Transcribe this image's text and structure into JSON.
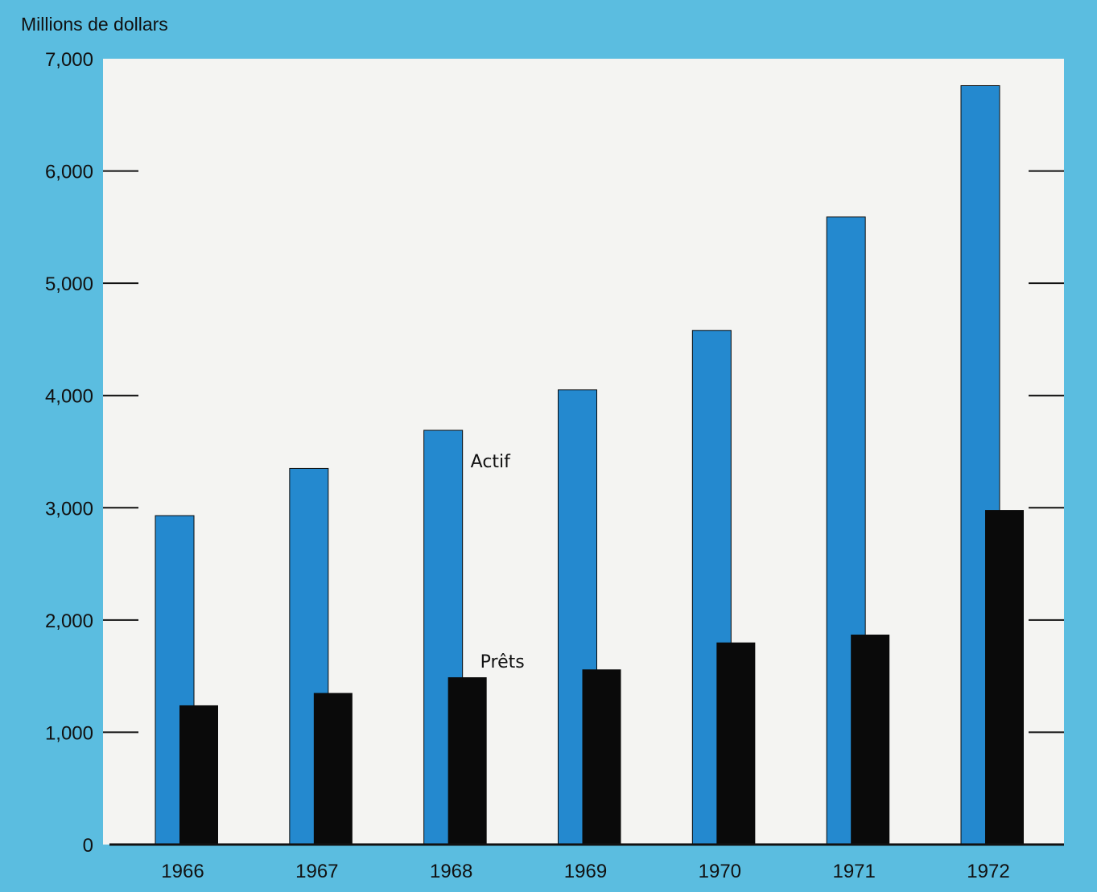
{
  "colors": {
    "background": "#5bbde0",
    "plot_area": "#f4f4f2",
    "actif": "#2489cf",
    "prets": "#0a0a0a",
    "axis": "#111111"
  },
  "chart_data": {
    "type": "bar",
    "title": "",
    "xlabel": "",
    "ylabel": "Millions de dollars",
    "categories": [
      "1966",
      "1967",
      "1968",
      "1969",
      "1970",
      "1971",
      "1972"
    ],
    "ylim": [
      0,
      7000
    ],
    "yticks": [
      0,
      1000,
      2000,
      3000,
      4000,
      5000,
      6000,
      7000
    ],
    "ytick_labels": [
      "0",
      "1,000",
      "2,000",
      "3,000",
      "4,000",
      "5,000",
      "6,000",
      "7,000"
    ],
    "grid": false,
    "series": [
      {
        "name": "Actif",
        "values": [
          2930,
          3350,
          3690,
          4050,
          4580,
          5590,
          6760
        ]
      },
      {
        "name": "Prêts",
        "values": [
          1240,
          1350,
          1490,
          1560,
          1800,
          1870,
          2980
        ]
      }
    ],
    "annotations": [
      {
        "text": "Actif",
        "series": 0,
        "category": "1968"
      },
      {
        "text": "Prêts",
        "series": 1,
        "category": "1968"
      }
    ]
  }
}
